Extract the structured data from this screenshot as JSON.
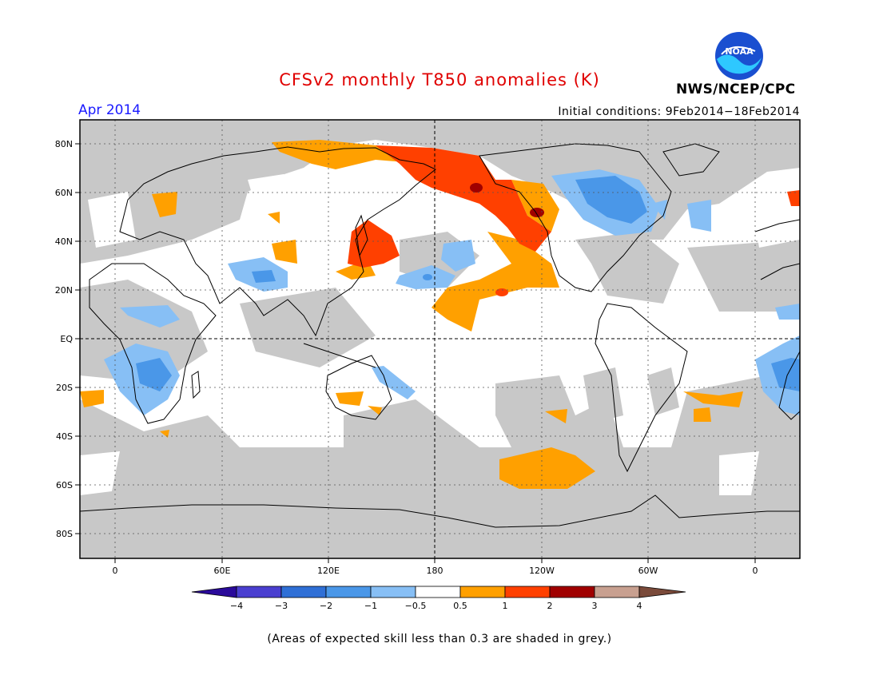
{
  "header": {
    "title": "CFSv2 monthly T850 anomalies (K)",
    "period": "Apr 2014",
    "initial_conditions": "Initial conditions: 9Feb2014−18Feb2014",
    "agency": "NWS/NCEP/CPC",
    "logo_text": "NOAA"
  },
  "colors": {
    "title": "#e00000",
    "period": "#1a1aff",
    "grey_low_skill": "#c8c8c8",
    "land_outline": "#000000"
  },
  "axes": {
    "lat_labels": [
      "80N",
      "60N",
      "40N",
      "20N",
      "EQ",
      "20S",
      "40S",
      "60S",
      "80S"
    ],
    "lon_labels": [
      "0",
      "60E",
      "120E",
      "180",
      "120W",
      "60W",
      "0"
    ]
  },
  "colorbar": {
    "colors": [
      "#2a0a9a",
      "#4a3fd0",
      "#2f6fd6",
      "#4a97e8",
      "#87bff5",
      "#ffffff",
      "#ffa000",
      "#ff4000",
      "#a00000",
      "#c8a090",
      "#7a4a3a"
    ],
    "labels": [
      "−4",
      "−3",
      "−2",
      "−1",
      "−0.5",
      "0.5",
      "1",
      "2",
      "3",
      "4"
    ]
  },
  "footnote": "(Areas of expected skill less than 0.3 are shaded in grey.)",
  "map_regions": [
    {
      "name": "orange-north-pacific-east",
      "color": "orange"
    },
    {
      "name": "red-alaska",
      "color": "red"
    },
    {
      "name": "blue-canada",
      "color": "blue"
    },
    {
      "name": "red-japan",
      "color": "red"
    },
    {
      "name": "orange-south-pacific",
      "color": "orange"
    }
  ]
}
